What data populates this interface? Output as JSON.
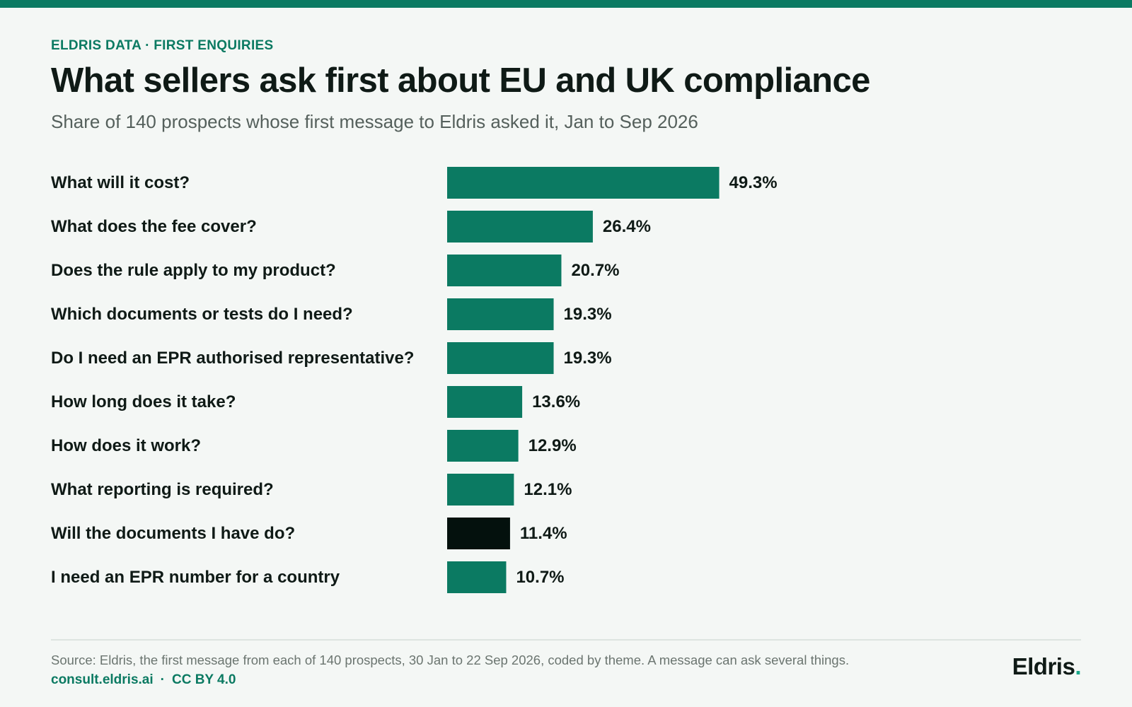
{
  "header": {
    "kicker": "ELDRIS DATA · FIRST ENQUIRIES",
    "title": "What sellers ask first about EU and UK compliance",
    "subtitle": "Share of 140 prospects whose first message to Eldris asked it, Jan to Sep 2026"
  },
  "chart_data": {
    "type": "bar",
    "orientation": "horizontal",
    "title": "What sellers ask first about EU and UK compliance",
    "subtitle": "Share of 140 prospects whose first message to Eldris asked it, Jan to Sep 2026",
    "categories": [
      "What will it cost?",
      "What does the fee cover?",
      "Does the rule apply to my product?",
      "Which documents or tests do I need?",
      "Do I need an EPR authorised representative?",
      "How long does it take?",
      "How does it work?",
      "What reporting is required?",
      "Will the documents I have do?",
      "I need an EPR number for a country"
    ],
    "values": [
      49.3,
      26.4,
      20.7,
      19.3,
      19.3,
      13.6,
      12.9,
      12.1,
      11.4,
      10.7
    ],
    "value_labels": [
      "49.3%",
      "26.4%",
      "20.7%",
      "19.3%",
      "19.3%",
      "13.6%",
      "12.9%",
      "12.1%",
      "11.4%",
      "10.7%"
    ],
    "unit": "%",
    "xlabel": "",
    "ylabel": "",
    "highlight_index": 8,
    "colors": {
      "bar": "#0b7a62",
      "highlight": "#04110d"
    },
    "grid": false,
    "legend": "none"
  },
  "footer": {
    "source": "Source: Eldris, the first message from each of 140 prospects, 30 Jan to 22 Sep 2026, coded by theme. A message can ask several things.",
    "link": "consult.eldris.ai",
    "separator": "·",
    "license": "CC BY 4.0",
    "brand_name": "Eldris",
    "brand_dot": "."
  }
}
